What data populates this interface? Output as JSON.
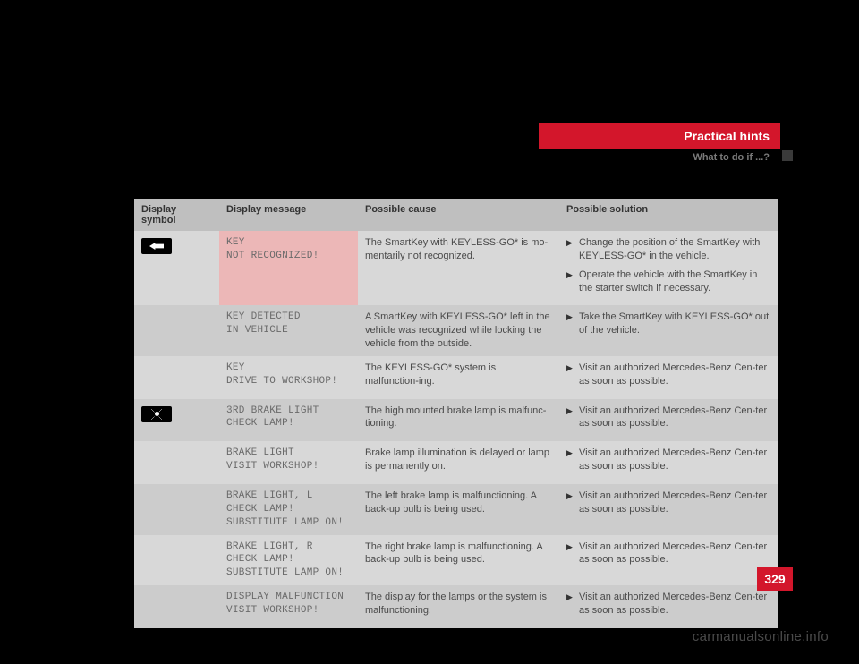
{
  "header": {
    "title": "Practical hints",
    "subtitle": "What to do if ...?"
  },
  "table": {
    "columns": [
      "Display symbol",
      "Display message",
      "Possible cause",
      "Possible solution"
    ],
    "rows": [
      {
        "symbol": "key",
        "alt": false,
        "highlight": true,
        "message_lines": [
          "KEY",
          "NOT RECOGNIZED!"
        ],
        "cause": "The SmartKey with KEYLESS-GO* is mo-mentarily not recognized.",
        "solutions": [
          "Change the position of the SmartKey with KEYLESS-GO* in the vehicle.",
          "Operate the vehicle with the SmartKey in the starter switch if necessary."
        ]
      },
      {
        "symbol": "",
        "alt": true,
        "highlight": false,
        "message_lines": [
          "KEY DETECTED",
          "IN VEHICLE"
        ],
        "cause": "A SmartKey with KEYLESS-GO* left in the vehicle was recognized while locking the vehicle from the outside.",
        "solutions": [
          "Take the SmartKey with KEYLESS-GO* out of the vehicle."
        ]
      },
      {
        "symbol": "",
        "alt": false,
        "highlight": false,
        "message_lines": [
          "KEY",
          "DRIVE TO WORKSHOP!"
        ],
        "cause": "The KEYLESS-GO* system is malfunction-ing.",
        "solutions": [
          "Visit an authorized Mercedes-Benz Cen-ter as soon as possible."
        ]
      },
      {
        "symbol": "lamp",
        "alt": true,
        "highlight": false,
        "message_lines": [
          "3RD BRAKE LIGHT",
          "CHECK LAMP!"
        ],
        "cause": "The high mounted brake lamp is malfunc-tioning.",
        "solutions": [
          "Visit an authorized Mercedes-Benz Cen-ter as soon as possible."
        ]
      },
      {
        "symbol": "",
        "alt": false,
        "highlight": false,
        "message_lines": [
          "BRAKE LIGHT",
          "VISIT WORKSHOP!"
        ],
        "cause": "Brake lamp illumination is delayed or lamp is permanently on.",
        "solutions": [
          "Visit an authorized Mercedes-Benz Cen-ter as soon as possible."
        ]
      },
      {
        "symbol": "",
        "alt": true,
        "highlight": false,
        "message_lines": [
          "BRAKE LIGHT, L",
          "CHECK LAMP!",
          "SUBSTITUTE LAMP ON!"
        ],
        "cause": "The left brake lamp is malfunctioning. A back-up bulb is being used.",
        "solutions": [
          "Visit an authorized Mercedes-Benz Cen-ter as soon as possible."
        ]
      },
      {
        "symbol": "",
        "alt": false,
        "highlight": false,
        "message_lines": [
          "BRAKE LIGHT, R",
          "CHECK LAMP!",
          "SUBSTITUTE LAMP ON!"
        ],
        "cause": "The right brake lamp is malfunctioning. A back-up bulb is being used.",
        "solutions": [
          "Visit an authorized Mercedes-Benz Cen-ter as soon as possible."
        ]
      },
      {
        "symbol": "",
        "alt": true,
        "highlight": false,
        "message_lines": [
          "DISPLAY MALFUNCTION",
          "VISIT WORKSHOP!"
        ],
        "cause": "The display for the lamps or the system is malfunctioning.",
        "solutions": [
          "Visit an authorized Mercedes-Benz Cen-ter as soon as possible."
        ]
      }
    ]
  },
  "page_number": "329",
  "watermark": "carmanualsonline.info"
}
